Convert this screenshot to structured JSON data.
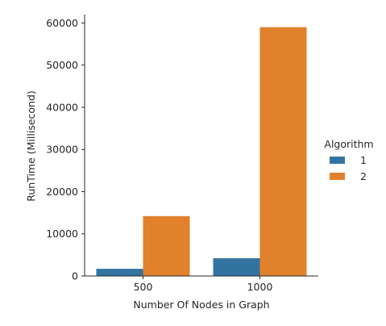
{
  "chart_data": {
    "type": "bar",
    "categories": [
      "500",
      "1000"
    ],
    "series": [
      {
        "name": "1",
        "values": [
          1700,
          4200
        ],
        "color": "#3274a1"
      },
      {
        "name": "2",
        "values": [
          14200,
          59000
        ],
        "color": "#e1812c"
      }
    ],
    "xlabel": "Number Of Nodes in Graph",
    "ylabel": "RunTime (Millisecond)",
    "ylim": [
      0,
      62000
    ],
    "yticks": [
      0,
      10000,
      20000,
      30000,
      40000,
      50000,
      60000
    ],
    "grid": false,
    "legend": {
      "title": "Algorithm",
      "placement": "right"
    }
  }
}
